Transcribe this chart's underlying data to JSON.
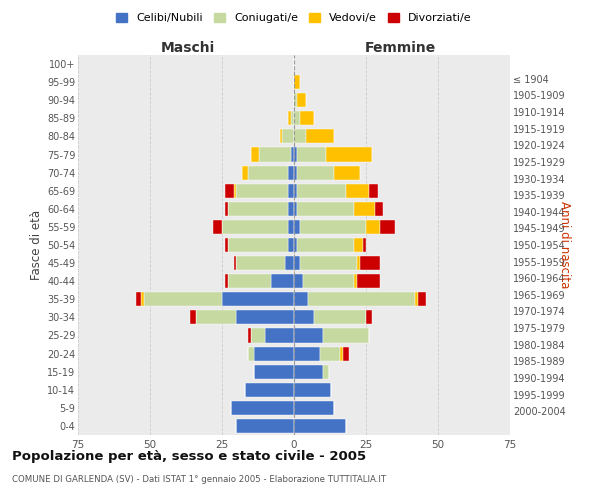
{
  "age_groups": [
    "0-4",
    "5-9",
    "10-14",
    "15-19",
    "20-24",
    "25-29",
    "30-34",
    "35-39",
    "40-44",
    "45-49",
    "50-54",
    "55-59",
    "60-64",
    "65-69",
    "70-74",
    "75-79",
    "80-84",
    "85-89",
    "90-94",
    "95-99",
    "100+"
  ],
  "birth_years": [
    "2000-2004",
    "1995-1999",
    "1990-1994",
    "1985-1989",
    "1980-1984",
    "1975-1979",
    "1970-1974",
    "1965-1969",
    "1960-1964",
    "1955-1959",
    "1950-1954",
    "1945-1949",
    "1940-1944",
    "1935-1939",
    "1930-1934",
    "1925-1929",
    "1920-1924",
    "1915-1919",
    "1910-1914",
    "1905-1909",
    "≤ 1904"
  ],
  "maschi": {
    "celibi": [
      20,
      22,
      17,
      14,
      14,
      10,
      20,
      25,
      8,
      3,
      2,
      2,
      2,
      2,
      2,
      1,
      0,
      0,
      0,
      0,
      0
    ],
    "coniugati": [
      0,
      0,
      0,
      0,
      2,
      5,
      14,
      27,
      15,
      17,
      21,
      23,
      21,
      18,
      14,
      11,
      4,
      1,
      0,
      0,
      0
    ],
    "vedovi": [
      0,
      0,
      0,
      0,
      0,
      0,
      0,
      1,
      0,
      0,
      0,
      0,
      0,
      1,
      2,
      3,
      1,
      1,
      0,
      0,
      0
    ],
    "divorziati": [
      0,
      0,
      0,
      0,
      0,
      1,
      2,
      2,
      1,
      1,
      1,
      3,
      1,
      3,
      0,
      0,
      0,
      0,
      0,
      0,
      0
    ]
  },
  "femmine": {
    "nubili": [
      18,
      14,
      13,
      10,
      9,
      10,
      7,
      5,
      3,
      2,
      1,
      2,
      1,
      1,
      1,
      1,
      0,
      0,
      0,
      0,
      0
    ],
    "coniugate": [
      0,
      0,
      0,
      2,
      7,
      16,
      18,
      37,
      18,
      20,
      20,
      23,
      20,
      17,
      13,
      10,
      4,
      2,
      1,
      0,
      0
    ],
    "vedove": [
      0,
      0,
      0,
      0,
      1,
      0,
      0,
      1,
      1,
      1,
      3,
      5,
      7,
      8,
      9,
      16,
      10,
      5,
      3,
      2,
      0
    ],
    "divorziate": [
      0,
      0,
      0,
      0,
      2,
      0,
      2,
      3,
      8,
      7,
      1,
      5,
      3,
      3,
      0,
      0,
      0,
      0,
      0,
      0,
      0
    ]
  },
  "colors": {
    "celibi": "#4472c4",
    "coniugati": "#c5d9a0",
    "vedovi": "#ffc000",
    "divorziati": "#cc0000"
  },
  "legend_labels": [
    "Celibi/Nubili",
    "Coniugati/e",
    "Vedovi/e",
    "Divorziati/e"
  ],
  "title": "Popolazione per età, sesso e stato civile - 2005",
  "subtitle": "COMUNE DI GARLENDA (SV) - Dati ISTAT 1° gennaio 2005 - Elaborazione TUTTITALIA.IT",
  "xlabel_left": "Maschi",
  "xlabel_right": "Femmine",
  "ylabel_left": "Fasce di età",
  "ylabel_right": "Anni di nascita",
  "xlim": 75,
  "bg_color": "#ffffff",
  "plot_bg_color": "#ebebeb"
}
